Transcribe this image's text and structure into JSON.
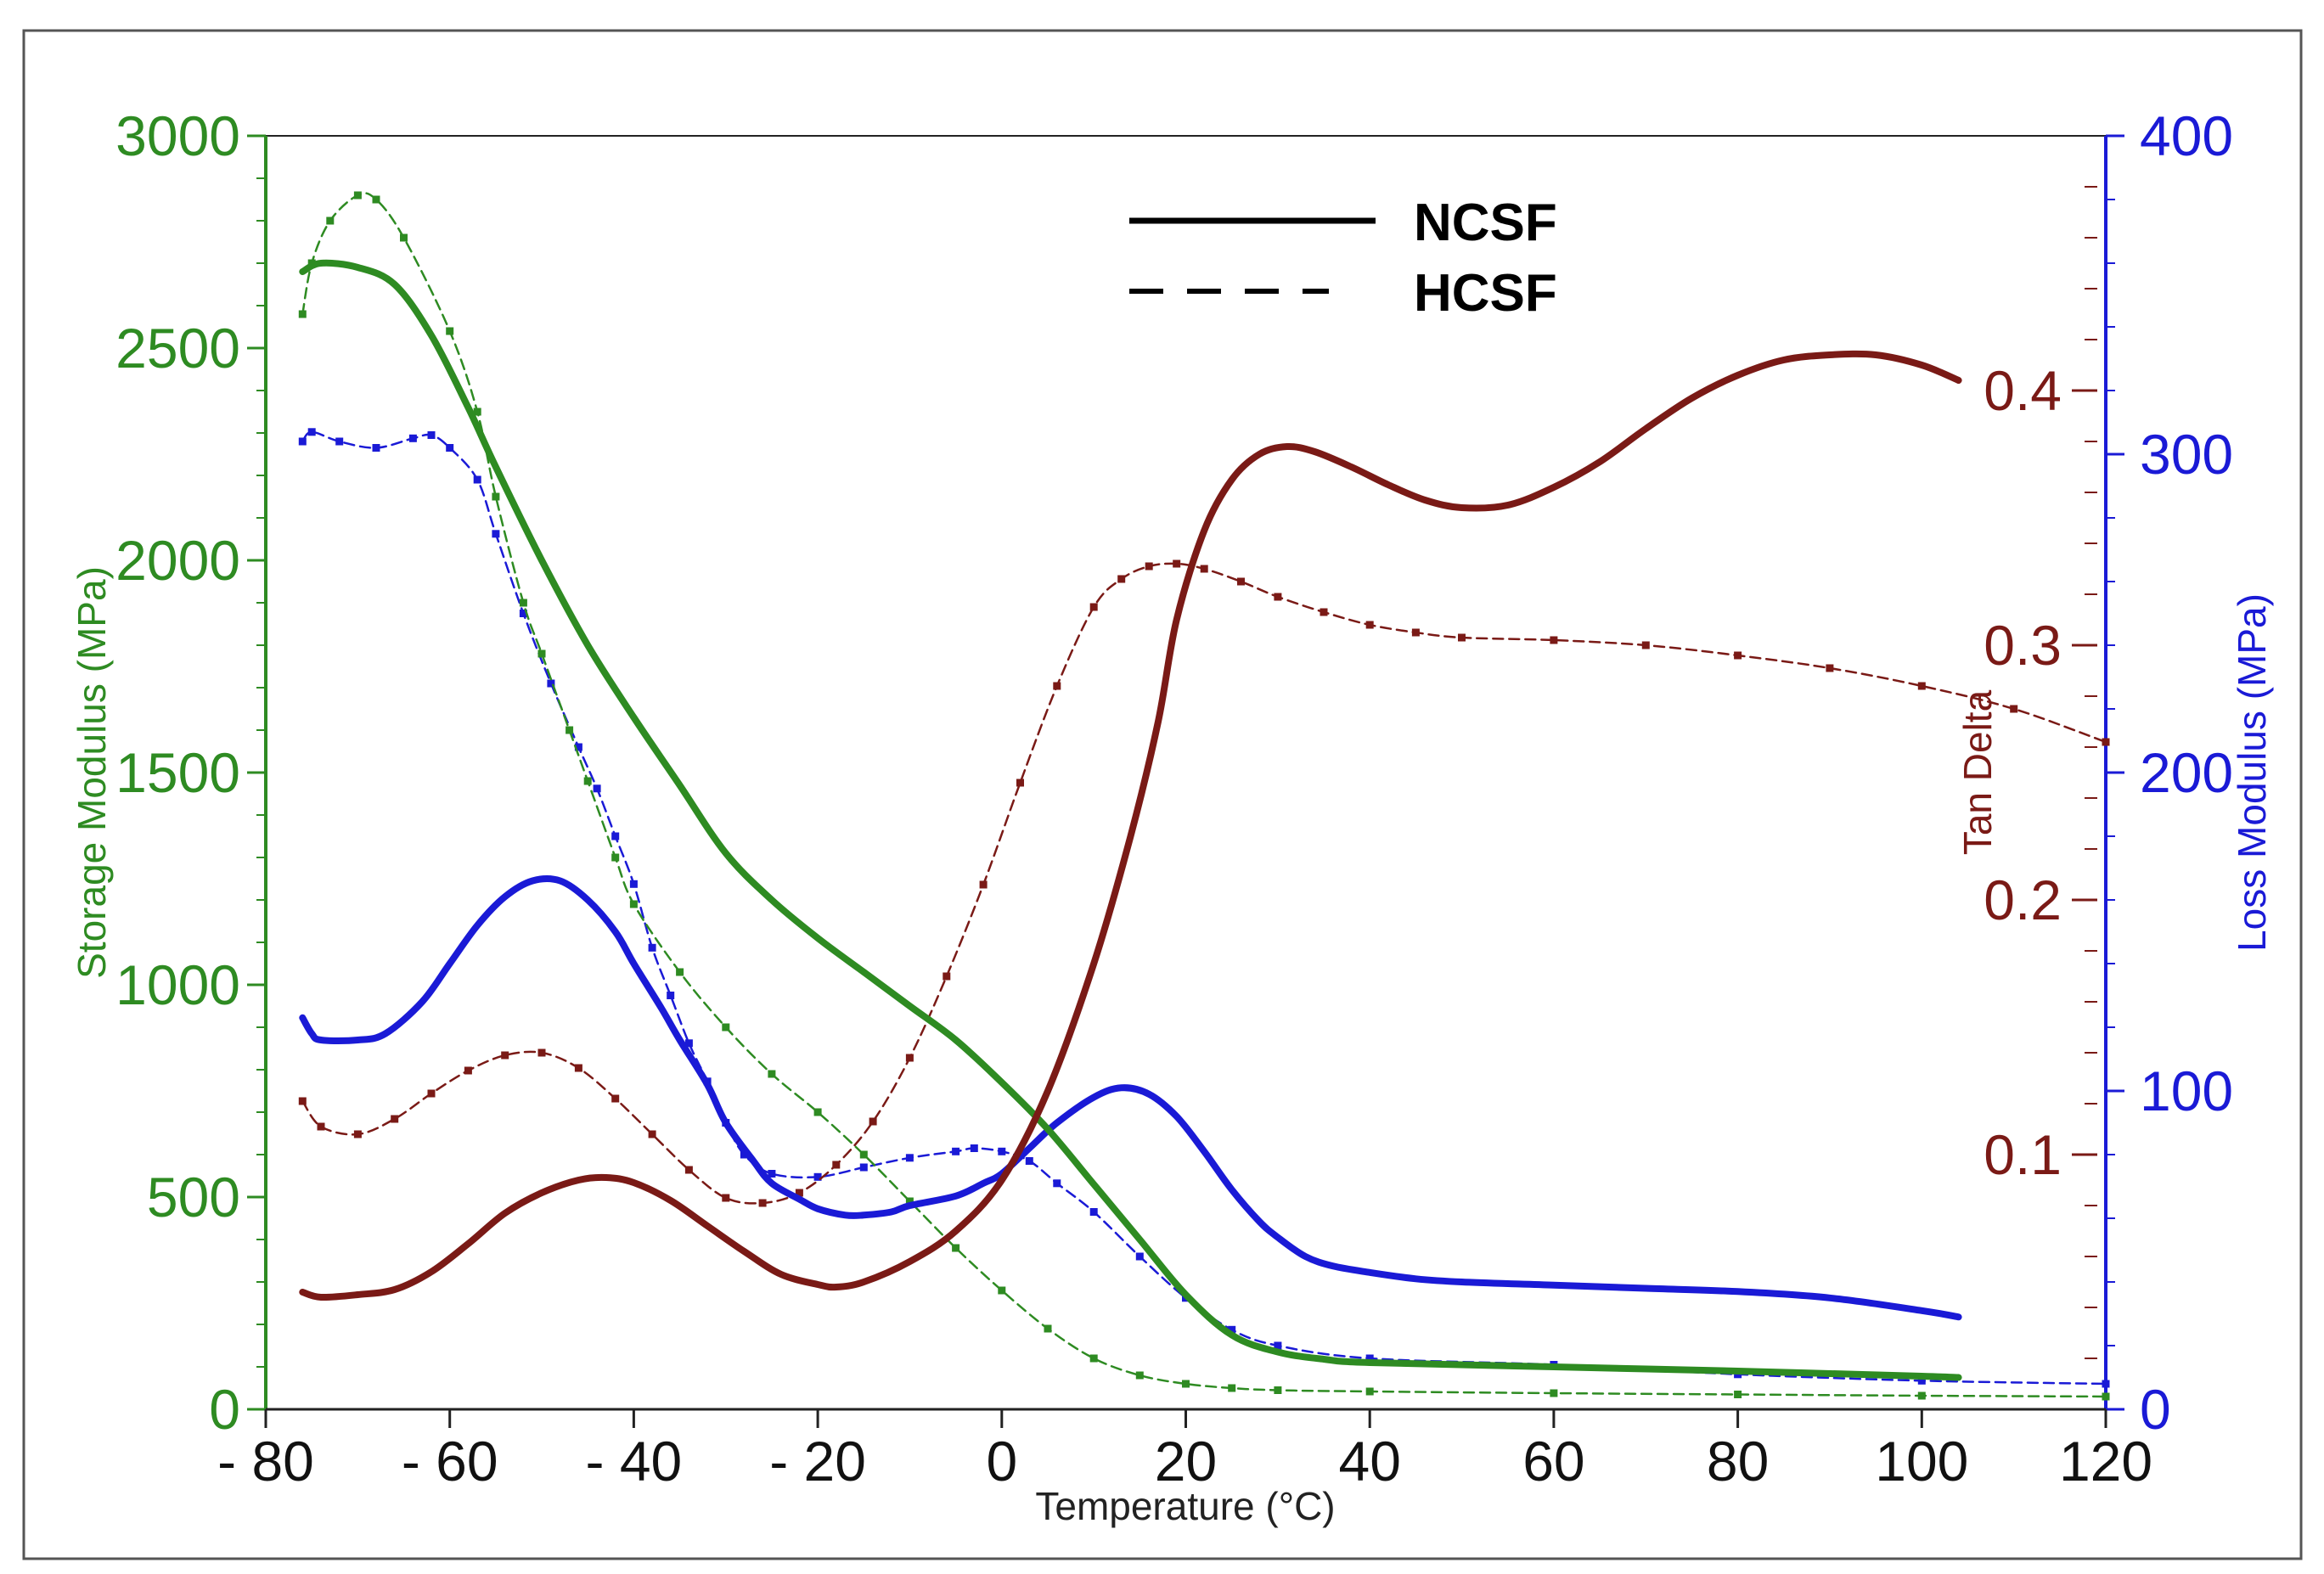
{
  "chart_data": {
    "type": "line",
    "title": "",
    "xlabel": "Temperature (°C)",
    "xlim": [
      -80,
      120
    ],
    "x_ticks": [
      -80,
      -60,
      -40,
      -20,
      0,
      20,
      40,
      60,
      80,
      100,
      120
    ],
    "x_tick_labels": [
      "- 80",
      "- 60",
      "- 40",
      "- 20",
      "0",
      "20",
      "40",
      "60",
      "80",
      "100",
      "120"
    ],
    "grid": false,
    "legend_position": "top-center",
    "legend": [
      {
        "name": "NCSF",
        "style": "solid"
      },
      {
        "name": "HCSF",
        "style": "dashed"
      }
    ],
    "axes": {
      "storage": {
        "label": "Storage Modulus (MPa)",
        "side": "left",
        "color": "#2e8b22",
        "range": [
          0,
          3000
        ],
        "ticks": [
          0,
          500,
          1000,
          1500,
          2000,
          2500,
          3000
        ]
      },
      "tan": {
        "label": "Tan Delta",
        "side": "inner-right",
        "color": "#7a1a16",
        "range": [
          0,
          0.5
        ],
        "ticks": [
          0.1,
          0.2,
          0.3,
          0.4
        ],
        "tick_labels": [
          "0.1",
          "0.2",
          "0.3",
          "0.4"
        ]
      },
      "loss": {
        "label": "Loss Modulus (MPa)",
        "side": "right",
        "color": "#1a1ad6",
        "range": [
          0,
          400
        ],
        "ticks": [
          0,
          100,
          200,
          300,
          400
        ]
      }
    },
    "series": [
      {
        "name": "Storage Modulus NCSF",
        "sample": "NCSF",
        "axis": "storage",
        "style": "solid",
        "points": [
          [
            -76,
            2680
          ],
          [
            -74,
            2700
          ],
          [
            -70,
            2690
          ],
          [
            -66,
            2650
          ],
          [
            -62,
            2530
          ],
          [
            -58,
            2360
          ],
          [
            -55,
            2220
          ],
          [
            -50,
            2000
          ],
          [
            -45,
            1800
          ],
          [
            -40,
            1630
          ],
          [
            -35,
            1470
          ],
          [
            -30,
            1310
          ],
          [
            -25,
            1200
          ],
          [
            -20,
            1110
          ],
          [
            -15,
            1030
          ],
          [
            -10,
            950
          ],
          [
            -5,
            870
          ],
          [
            0,
            770
          ],
          [
            5,
            660
          ],
          [
            10,
            530
          ],
          [
            15,
            400
          ],
          [
            20,
            270
          ],
          [
            25,
            175
          ],
          [
            30,
            135
          ],
          [
            35,
            118
          ],
          [
            40,
            110
          ],
          [
            60,
            100
          ],
          [
            80,
            90
          ],
          [
            100,
            78
          ],
          [
            104,
            75
          ]
        ]
      },
      {
        "name": "Storage Modulus HCSF",
        "sample": "HCSF",
        "axis": "storage",
        "style": "dashed",
        "points": [
          [
            -76,
            2580
          ],
          [
            -75,
            2700
          ],
          [
            -73,
            2800
          ],
          [
            -70,
            2860
          ],
          [
            -68,
            2850
          ],
          [
            -65,
            2760
          ],
          [
            -60,
            2540
          ],
          [
            -57,
            2350
          ],
          [
            -55,
            2150
          ],
          [
            -52,
            1900
          ],
          [
            -50,
            1780
          ],
          [
            -47,
            1600
          ],
          [
            -45,
            1480
          ],
          [
            -42,
            1300
          ],
          [
            -40,
            1190
          ],
          [
            -35,
            1030
          ],
          [
            -30,
            900
          ],
          [
            -25,
            790
          ],
          [
            -20,
            700
          ],
          [
            -15,
            600
          ],
          [
            -10,
            490
          ],
          [
            -5,
            380
          ],
          [
            0,
            280
          ],
          [
            5,
            190
          ],
          [
            10,
            120
          ],
          [
            15,
            80
          ],
          [
            20,
            60
          ],
          [
            25,
            50
          ],
          [
            30,
            45
          ],
          [
            40,
            42
          ],
          [
            60,
            38
          ],
          [
            80,
            35
          ],
          [
            100,
            32
          ],
          [
            120,
            30
          ]
        ]
      },
      {
        "name": "Loss Modulus NCSF",
        "sample": "NCSF",
        "axis": "loss",
        "style": "solid",
        "points": [
          [
            -76,
            123
          ],
          [
            -75,
            118
          ],
          [
            -74,
            116
          ],
          [
            -70,
            116
          ],
          [
            -67,
            118
          ],
          [
            -63,
            128
          ],
          [
            -60,
            140
          ],
          [
            -57,
            152
          ],
          [
            -54,
            161
          ],
          [
            -51,
            166
          ],
          [
            -48,
            166
          ],
          [
            -45,
            160
          ],
          [
            -42,
            150
          ],
          [
            -40,
            140
          ],
          [
            -37,
            126
          ],
          [
            -35,
            116
          ],
          [
            -32,
            102
          ],
          [
            -30,
            90
          ],
          [
            -27,
            78
          ],
          [
            -25,
            71
          ],
          [
            -22,
            66
          ],
          [
            -20,
            63
          ],
          [
            -17,
            61
          ],
          [
            -15,
            61
          ],
          [
            -12,
            62
          ],
          [
            -10,
            64
          ],
          [
            -5,
            67
          ],
          [
            -2,
            71
          ],
          [
            0,
            74
          ],
          [
            3,
            82
          ],
          [
            6,
            90
          ],
          [
            10,
            98
          ],
          [
            13,
            101
          ],
          [
            16,
            99
          ],
          [
            19,
            92
          ],
          [
            22,
            81
          ],
          [
            25,
            69
          ],
          [
            28,
            59
          ],
          [
            30,
            54
          ],
          [
            33,
            48
          ],
          [
            36,
            45
          ],
          [
            40,
            43
          ],
          [
            45,
            41
          ],
          [
            50,
            40
          ],
          [
            60,
            39
          ],
          [
            70,
            38
          ],
          [
            80,
            37
          ],
          [
            90,
            35
          ],
          [
            100,
            31
          ],
          [
            104,
            29
          ]
        ]
      },
      {
        "name": "Loss Modulus HCSF",
        "sample": "HCSF",
        "axis": "loss",
        "style": "dashed",
        "points": [
          [
            -76,
            304
          ],
          [
            -75,
            307
          ],
          [
            -72,
            304
          ],
          [
            -68,
            302
          ],
          [
            -64,
            305
          ],
          [
            -62,
            306
          ],
          [
            -60,
            302
          ],
          [
            -57,
            292
          ],
          [
            -55,
            275
          ],
          [
            -52,
            250
          ],
          [
            -49,
            228
          ],
          [
            -46,
            208
          ],
          [
            -44,
            195
          ],
          [
            -42,
            180
          ],
          [
            -40,
            165
          ],
          [
            -38,
            145
          ],
          [
            -36,
            130
          ],
          [
            -34,
            115
          ],
          [
            -32,
            103
          ],
          [
            -30,
            90
          ],
          [
            -28,
            80
          ],
          [
            -25,
            74
          ],
          [
            -20,
            73
          ],
          [
            -15,
            76
          ],
          [
            -10,
            79
          ],
          [
            -5,
            81
          ],
          [
            -3,
            82
          ],
          [
            0,
            81
          ],
          [
            3,
            78
          ],
          [
            6,
            71
          ],
          [
            10,
            62
          ],
          [
            15,
            48
          ],
          [
            20,
            35
          ],
          [
            25,
            25
          ],
          [
            30,
            20
          ],
          [
            40,
            16
          ],
          [
            60,
            14
          ],
          [
            80,
            11
          ],
          [
            100,
            9
          ],
          [
            120,
            8
          ]
        ]
      },
      {
        "name": "Tan Delta NCSF",
        "sample": "NCSF",
        "axis": "tan",
        "style": "solid",
        "points": [
          [
            -76,
            0.046
          ],
          [
            -74,
            0.044
          ],
          [
            -70,
            0.045
          ],
          [
            -66,
            0.047
          ],
          [
            -62,
            0.054
          ],
          [
            -58,
            0.065
          ],
          [
            -54,
            0.077
          ],
          [
            -50,
            0.085
          ],
          [
            -46,
            0.09
          ],
          [
            -43,
            0.091
          ],
          [
            -40,
            0.089
          ],
          [
            -36,
            0.082
          ],
          [
            -32,
            0.072
          ],
          [
            -28,
            0.062
          ],
          [
            -24,
            0.053
          ],
          [
            -20,
            0.049
          ],
          [
            -18,
            0.048
          ],
          [
            -15,
            0.05
          ],
          [
            -10,
            0.058
          ],
          [
            -5,
            0.07
          ],
          [
            0,
            0.09
          ],
          [
            5,
            0.125
          ],
          [
            10,
            0.175
          ],
          [
            14,
            0.225
          ],
          [
            17,
            0.27
          ],
          [
            19,
            0.31
          ],
          [
            22,
            0.345
          ],
          [
            25,
            0.365
          ],
          [
            28,
            0.375
          ],
          [
            31,
            0.378
          ],
          [
            34,
            0.376
          ],
          [
            38,
            0.37
          ],
          [
            42,
            0.363
          ],
          [
            46,
            0.357
          ],
          [
            50,
            0.354
          ],
          [
            55,
            0.355
          ],
          [
            60,
            0.362
          ],
          [
            65,
            0.372
          ],
          [
            70,
            0.385
          ],
          [
            75,
            0.397
          ],
          [
            80,
            0.406
          ],
          [
            85,
            0.412
          ],
          [
            90,
            0.414
          ],
          [
            95,
            0.414
          ],
          [
            100,
            0.41
          ],
          [
            104,
            0.404
          ]
        ]
      },
      {
        "name": "Tan Delta HCSF",
        "sample": "HCSF",
        "axis": "tan",
        "style": "dashed",
        "points": [
          [
            -76,
            0.121
          ],
          [
            -74,
            0.111
          ],
          [
            -70,
            0.108
          ],
          [
            -66,
            0.114
          ],
          [
            -62,
            0.124
          ],
          [
            -58,
            0.133
          ],
          [
            -54,
            0.139
          ],
          [
            -50,
            0.14
          ],
          [
            -46,
            0.134
          ],
          [
            -42,
            0.122
          ],
          [
            -38,
            0.108
          ],
          [
            -34,
            0.094
          ],
          [
            -30,
            0.083
          ],
          [
            -26,
            0.081
          ],
          [
            -22,
            0.085
          ],
          [
            -18,
            0.096
          ],
          [
            -14,
            0.113
          ],
          [
            -10,
            0.138
          ],
          [
            -6,
            0.17
          ],
          [
            -2,
            0.206
          ],
          [
            2,
            0.246
          ],
          [
            6,
            0.284
          ],
          [
            10,
            0.315
          ],
          [
            13,
            0.326
          ],
          [
            16,
            0.331
          ],
          [
            19,
            0.332
          ],
          [
            22,
            0.33
          ],
          [
            26,
            0.325
          ],
          [
            30,
            0.319
          ],
          [
            35,
            0.313
          ],
          [
            40,
            0.308
          ],
          [
            45,
            0.305
          ],
          [
            50,
            0.303
          ],
          [
            60,
            0.302
          ],
          [
            70,
            0.3
          ],
          [
            80,
            0.296
          ],
          [
            90,
            0.291
          ],
          [
            100,
            0.284
          ],
          [
            110,
            0.275
          ],
          [
            120,
            0.262
          ]
        ]
      }
    ]
  }
}
